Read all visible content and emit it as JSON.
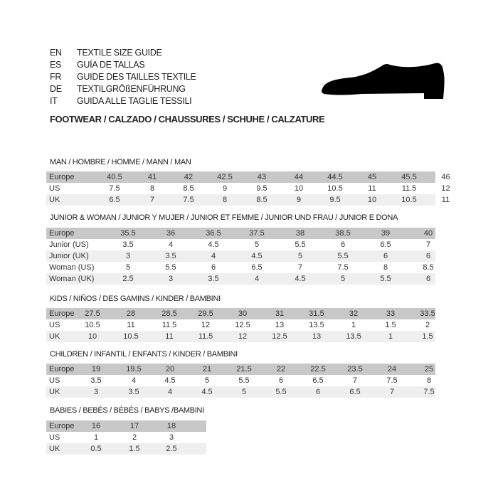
{
  "header": {
    "languages": [
      {
        "code": "EN",
        "title": "TEXTILE SIZE GUIDE"
      },
      {
        "code": "ES",
        "title": "GUÍA DE TALLAS"
      },
      {
        "code": "FR",
        "title": "GUIDE DES TAILLES TEXTILE"
      },
      {
        "code": "DE",
        "title": "TEXTILGRÖßENFÜHRUNG"
      },
      {
        "code": "IT",
        "title": "GUIDA ALLE TAGLIE TESSILI"
      }
    ],
    "footwear_title": "FOOTWEAR / CALZADO / CHAUSSURES / SCHUHE / CALZATURE",
    "icon": "shoe-icon"
  },
  "colors": {
    "header_row": "#c8c8c8",
    "alt_row": "#efefef"
  },
  "tables": [
    {
      "title": "MAN / HOMBRE / HOMME / MANN / MAN",
      "rows": [
        {
          "label": "Europe",
          "values": [
            "40.5",
            "41",
            "42",
            "42.5",
            "43",
            "44",
            "44.5",
            "45",
            "45.5",
            "46"
          ]
        },
        {
          "label": "US",
          "values": [
            "7.5",
            "8",
            "8.5",
            "9",
            "9.5",
            "10",
            "10.5",
            "11",
            "11.5",
            "12"
          ]
        },
        {
          "label": "UK",
          "values": [
            "6.5",
            "7",
            "7.5",
            "8",
            "8.5",
            "9",
            "9.5",
            "10",
            "10.5",
            "11"
          ]
        }
      ]
    },
    {
      "title": "JUNIOR & WOMAN / JUNIOR Y MUJER / JUNIOR ET FEMME / JUNIOR UND FRAU / JUNIOR E DONA",
      "rows": [
        {
          "label": "Europe",
          "values": [
            "35.5",
            "36",
            "36.5",
            "37.5",
            "38",
            "38.5",
            "39",
            "40"
          ]
        },
        {
          "label": "Junior (US)",
          "values": [
            "3.5",
            "4",
            "4.5",
            "5",
            "5.5",
            "6",
            "6.5",
            "7"
          ]
        },
        {
          "label": "Junior (UK)",
          "values": [
            "3",
            "3.5",
            "4",
            "4.5",
            "5",
            "5.5",
            "6",
            "6"
          ]
        },
        {
          "label": "Woman (US)",
          "values": [
            "5",
            "5.5",
            "6",
            "6.5",
            "7",
            "7.5",
            "8",
            "8.5"
          ]
        },
        {
          "label": "Woman (UK)",
          "values": [
            "2.5",
            "3",
            "3.5",
            "4",
            "4.5",
            "5",
            "5.5",
            "6"
          ]
        }
      ]
    },
    {
      "title": "KIDS / NIÑOS / DES GAMINS / KINDER / BAMBINI",
      "rows": [
        {
          "label": "Europe",
          "values": [
            "27.5",
            "28",
            "28.5",
            "29.5",
            "30",
            "31",
            "31.5",
            "32",
            "33",
            "33.5"
          ]
        },
        {
          "label": "US",
          "values": [
            "10.5",
            "11",
            "11.5",
            "12",
            "12.5",
            "13",
            "13.5",
            "1",
            "1.5",
            "2"
          ]
        },
        {
          "label": "UK",
          "values": [
            "10",
            "10.5",
            "11",
            "11.5",
            "12",
            "12.5",
            "13",
            "13.5",
            "1",
            "1.5"
          ]
        }
      ]
    },
    {
      "title": "CHILDREN / INFANTIL / ENFANTS / KINDER / BAMBINI",
      "rows": [
        {
          "label": "Europe",
          "values": [
            "19",
            "19.5",
            "20",
            "21",
            "21.5",
            "22",
            "22.5",
            "23.5",
            "24",
            "25"
          ]
        },
        {
          "label": "US",
          "values": [
            "3.5",
            "4",
            "4.5",
            "5",
            "5.5",
            "6",
            "6.5",
            "7",
            "7.5",
            "8"
          ]
        },
        {
          "label": "UK",
          "values": [
            "3",
            "3.5",
            "4",
            "4.5",
            "5",
            "5.5",
            "6",
            "6.5",
            "7",
            "7.5"
          ]
        }
      ]
    },
    {
      "title": "BABIES  / BEBÉS / BÉBÉS / BABYS /BAMBINI",
      "rows": [
        {
          "label": "Europe",
          "values": [
            "16",
            "17",
            "18"
          ]
        },
        {
          "label": "US",
          "values": [
            "1",
            "2",
            "3"
          ]
        },
        {
          "label": "UK",
          "values": [
            "0.5",
            "1.5",
            "2.5"
          ]
        }
      ]
    }
  ]
}
